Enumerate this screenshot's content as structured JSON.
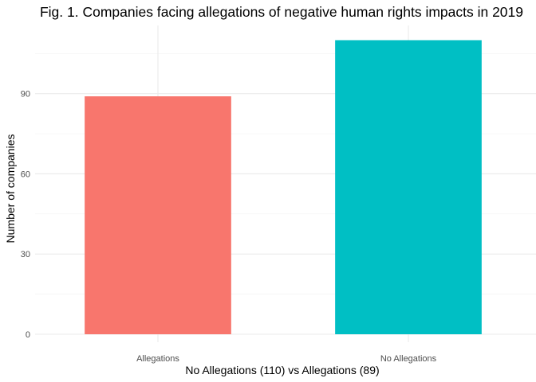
{
  "chart_data": {
    "type": "bar",
    "title": "Fig. 1. Companies facing allegations of negative human rights impacts in 2019",
    "xlabel": "No Allegations (110) vs Allegations (89)",
    "ylabel": "Number of companies",
    "categories": [
      "Allegations",
      "No Allegations"
    ],
    "values": [
      89,
      110
    ],
    "colors": [
      "#F8766D",
      "#00BFC4"
    ],
    "ylim": [
      0,
      115.5
    ],
    "yticks": [
      0,
      30,
      60,
      90
    ],
    "grid": true,
    "legend": "none"
  }
}
